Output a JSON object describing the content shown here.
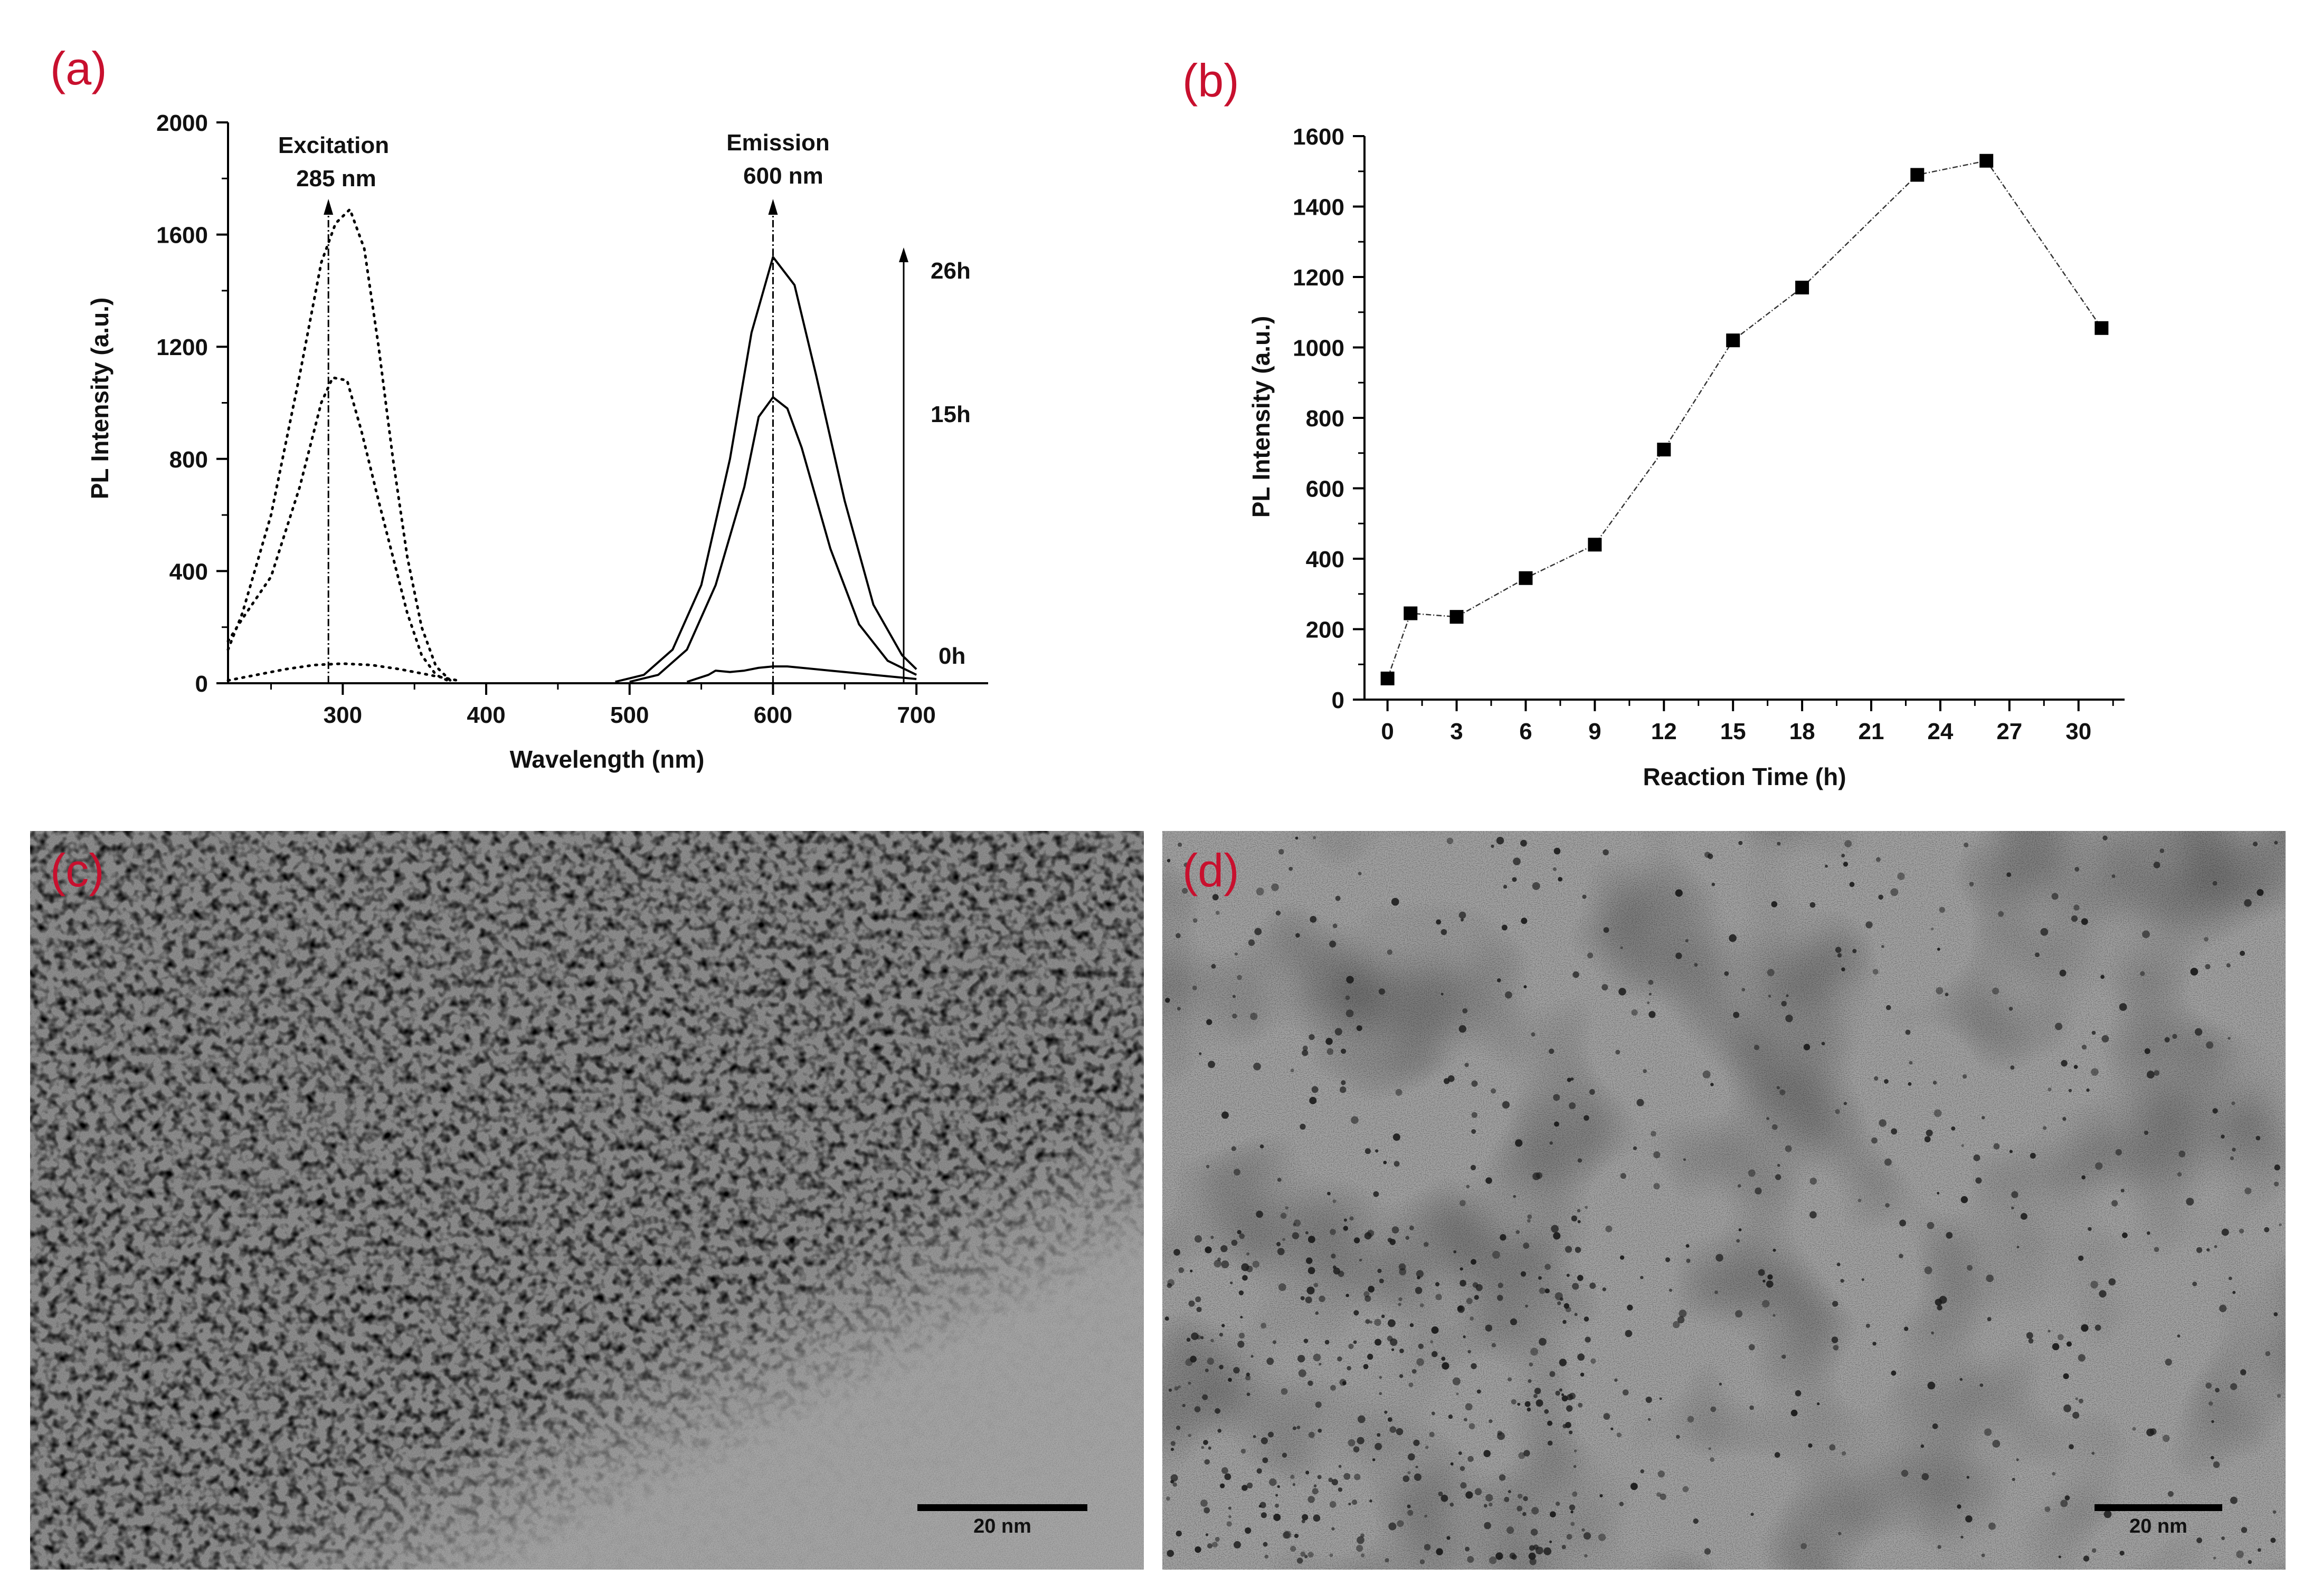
{
  "panels": {
    "a_label": "(a)",
    "b_label": "(b)",
    "c_label": "(c)",
    "d_label": "(d)"
  },
  "chart_data": [
    {
      "type": "line",
      "panel": "(a)",
      "xlabel": "Wavelength (nm)",
      "ylabel": "PL Intensity (a.u.)",
      "xlim": [
        220,
        750
      ],
      "ylim": [
        0,
        2000
      ],
      "xticks": [
        300,
        400,
        500,
        600,
        700
      ],
      "yticks": [
        0,
        400,
        800,
        1200,
        1600,
        2000
      ],
      "annotations": {
        "excitation_title": "Excitation",
        "excitation_value": "285 nm",
        "emission_title": "Emission",
        "emission_value": "600 nm",
        "time_26h": "26h",
        "time_15h": "15h",
        "time_0h": "0h"
      },
      "excitation_marker_x": 290,
      "emission_marker_x": 600,
      "series": [
        {
          "style": "dotted",
          "x": [
            220,
            230,
            250,
            270,
            285,
            295,
            305,
            315,
            325,
            335,
            345,
            355,
            365,
            375
          ],
          "values": [
            120,
            250,
            600,
            1100,
            1500,
            1640,
            1690,
            1550,
            1200,
            800,
            450,
            200,
            60,
            10
          ]
        },
        {
          "style": "dotted",
          "x": [
            220,
            230,
            250,
            270,
            285,
            293,
            303,
            313,
            325,
            335,
            345,
            355,
            365,
            375
          ],
          "values": [
            150,
            230,
            380,
            700,
            1000,
            1090,
            1080,
            900,
            650,
            450,
            250,
            100,
            30,
            5
          ]
        },
        {
          "style": "dotted",
          "x": [
            220,
            240,
            260,
            280,
            300,
            320,
            340,
            360,
            380
          ],
          "values": [
            10,
            30,
            50,
            65,
            70,
            65,
            50,
            30,
            10
          ]
        },
        {
          "style": "solid",
          "x": [
            490,
            510,
            530,
            550,
            570,
            585,
            600,
            615,
            630,
            650,
            670,
            690,
            700
          ],
          "values": [
            5,
            30,
            120,
            350,
            800,
            1250,
            1520,
            1420,
            1100,
            650,
            280,
            100,
            50
          ]
        },
        {
          "style": "solid",
          "x": [
            500,
            520,
            540,
            560,
            580,
            590,
            600,
            610,
            620,
            640,
            660,
            680,
            700
          ],
          "values": [
            5,
            30,
            120,
            350,
            700,
            950,
            1020,
            980,
            840,
            480,
            210,
            80,
            30
          ]
        },
        {
          "style": "solid",
          "x": [
            540,
            555,
            560,
            570,
            580,
            590,
            600,
            610,
            620,
            640,
            660,
            680,
            700
          ],
          "values": [
            5,
            30,
            45,
            40,
            45,
            55,
            60,
            60,
            55,
            45,
            35,
            25,
            15
          ]
        }
      ]
    },
    {
      "type": "line",
      "panel": "(b)",
      "xlabel": "Reaction Time (h)",
      "ylabel": "PL Intensity (a.u.)",
      "xlim": [
        -1,
        32
      ],
      "ylim": [
        0,
        1600
      ],
      "xticks": [
        0,
        3,
        6,
        9,
        12,
        15,
        18,
        21,
        24,
        27,
        30
      ],
      "yticks": [
        0,
        200,
        400,
        600,
        800,
        1000,
        1200,
        1400,
        1600
      ],
      "x": [
        0,
        1,
        3,
        6,
        9,
        12,
        15,
        18,
        23,
        26,
        31
      ],
      "values": [
        60,
        245,
        235,
        345,
        440,
        710,
        1020,
        1170,
        1490,
        1530,
        1055
      ]
    }
  ],
  "tem": {
    "c_scale": "20 nm",
    "d_scale": "20 nm"
  }
}
